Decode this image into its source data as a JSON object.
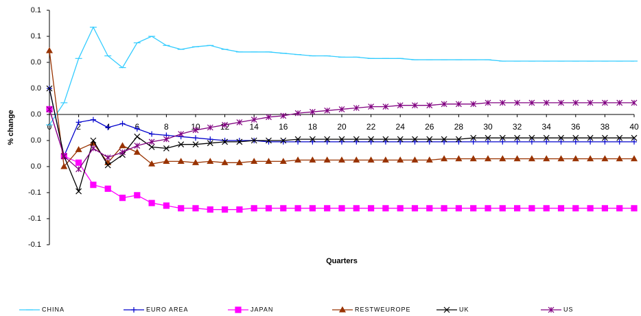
{
  "chart_data": {
    "type": "line",
    "xlabel": "Quarters",
    "ylabel": "% change",
    "x": [
      0,
      1,
      2,
      3,
      4,
      5,
      6,
      7,
      8,
      9,
      10,
      11,
      12,
      13,
      14,
      15,
      16,
      17,
      18,
      19,
      20,
      21,
      22,
      23,
      24,
      25,
      26,
      27,
      28,
      29,
      30,
      31,
      32,
      33,
      34,
      35,
      36,
      37,
      38,
      39,
      40
    ],
    "xlim": [
      0,
      40
    ],
    "xticks": [
      0,
      2,
      4,
      6,
      8,
      10,
      12,
      14,
      16,
      18,
      20,
      22,
      24,
      26,
      28,
      30,
      32,
      34,
      36,
      38,
      40
    ],
    "ylim": [
      -0.1,
      0.08
    ],
    "yticks": [
      {
        "value": 0.08,
        "label": "0.1"
      },
      {
        "value": 0.06,
        "label": "0.1"
      },
      {
        "value": 0.04,
        "label": "0.0"
      },
      {
        "value": 0.02,
        "label": "0.0"
      },
      {
        "value": 0,
        "label": "0.0"
      },
      {
        "value": -0.02,
        "label": "0.0"
      },
      {
        "value": -0.04,
        "label": "0.0"
      },
      {
        "value": -0.06,
        "label": "-0.1"
      },
      {
        "value": -0.08,
        "label": "-0.1"
      },
      {
        "value": -0.1,
        "label": "-0.1"
      }
    ],
    "legend": "bottom",
    "series": [
      {
        "name": "CHINA",
        "color": "#33ccff",
        "marker": "dash",
        "values": [
          -0.008,
          0.009,
          0.043,
          0.067,
          0.045,
          0.036,
          0.055,
          0.06,
          0.053,
          0.05,
          0.052,
          0.053,
          0.05,
          0.048,
          0.048,
          0.048,
          0.047,
          0.046,
          0.045,
          0.045,
          0.044,
          0.044,
          0.043,
          0.043,
          0.043,
          0.042,
          0.042,
          0.042,
          0.042,
          0.042,
          0.042,
          0.041,
          0.041,
          0.041,
          0.041,
          0.041,
          0.041,
          0.041,
          0.041,
          0.041,
          0.041
        ]
      },
      {
        "name": "EURO AREA",
        "color": "#0000cc",
        "marker": "plus",
        "values": [
          0.02,
          -0.032,
          -0.006,
          -0.004,
          -0.01,
          -0.007,
          -0.011,
          -0.015,
          -0.016,
          -0.017,
          -0.018,
          -0.019,
          -0.02,
          -0.02,
          -0.02,
          -0.021,
          -0.021,
          -0.021,
          -0.021,
          -0.021,
          -0.021,
          -0.021,
          -0.021,
          -0.021,
          -0.021,
          -0.021,
          -0.021,
          -0.021,
          -0.021,
          -0.021,
          -0.021,
          -0.021,
          -0.021,
          -0.021,
          -0.021,
          -0.021,
          -0.021,
          -0.021,
          -0.021,
          -0.021,
          -0.021
        ]
      },
      {
        "name": "JAPAN",
        "color": "#ff00ff",
        "marker": "square",
        "values": [
          0.004,
          -0.032,
          -0.037,
          -0.054,
          -0.057,
          -0.064,
          -0.062,
          -0.068,
          -0.07,
          -0.072,
          -0.072,
          -0.073,
          -0.073,
          -0.073,
          -0.072,
          -0.072,
          -0.072,
          -0.072,
          -0.072,
          -0.072,
          -0.072,
          -0.072,
          -0.072,
          -0.072,
          -0.072,
          -0.072,
          -0.072,
          -0.072,
          -0.072,
          -0.072,
          -0.072,
          -0.072,
          -0.072,
          -0.072,
          -0.072,
          -0.072,
          -0.072,
          -0.072,
          -0.072,
          -0.072,
          -0.072
        ]
      },
      {
        "name": "RESTWEUROPE",
        "color": "#993300",
        "marker": "triangle",
        "values": [
          0.049,
          -0.04,
          -0.027,
          -0.022,
          -0.037,
          -0.024,
          -0.029,
          -0.038,
          -0.036,
          -0.036,
          -0.037,
          -0.036,
          -0.037,
          -0.037,
          -0.036,
          -0.036,
          -0.036,
          -0.035,
          -0.035,
          -0.035,
          -0.035,
          -0.035,
          -0.035,
          -0.035,
          -0.035,
          -0.035,
          -0.035,
          -0.034,
          -0.034,
          -0.034,
          -0.034,
          -0.034,
          -0.034,
          -0.034,
          -0.034,
          -0.034,
          -0.034,
          -0.034,
          -0.034,
          -0.034,
          -0.034
        ]
      },
      {
        "name": "UK",
        "color": "#000000",
        "marker": "cross",
        "values": [
          0.02,
          -0.032,
          -0.059,
          -0.02,
          -0.039,
          -0.031,
          -0.017,
          -0.025,
          -0.026,
          -0.023,
          -0.023,
          -0.022,
          -0.021,
          -0.021,
          -0.02,
          -0.02,
          -0.02,
          -0.019,
          -0.019,
          -0.019,
          -0.019,
          -0.019,
          -0.019,
          -0.019,
          -0.019,
          -0.019,
          -0.019,
          -0.019,
          -0.019,
          -0.018,
          -0.018,
          -0.018,
          -0.018,
          -0.018,
          -0.018,
          -0.018,
          -0.018,
          -0.018,
          -0.018,
          -0.018,
          -0.018
        ]
      },
      {
        "name": "US",
        "color": "#800080",
        "marker": "star",
        "values": [
          0.004,
          -0.032,
          -0.042,
          -0.026,
          -0.033,
          -0.029,
          -0.024,
          -0.021,
          -0.019,
          -0.015,
          -0.012,
          -0.01,
          -0.008,
          -0.006,
          -0.004,
          -0.002,
          -0.001,
          0.001,
          0.002,
          0.003,
          0.004,
          0.005,
          0.006,
          0.006,
          0.007,
          0.007,
          0.007,
          0.008,
          0.008,
          0.008,
          0.009,
          0.009,
          0.009,
          0.009,
          0.009,
          0.009,
          0.009,
          0.009,
          0.009,
          0.009,
          0.009
        ]
      }
    ]
  }
}
